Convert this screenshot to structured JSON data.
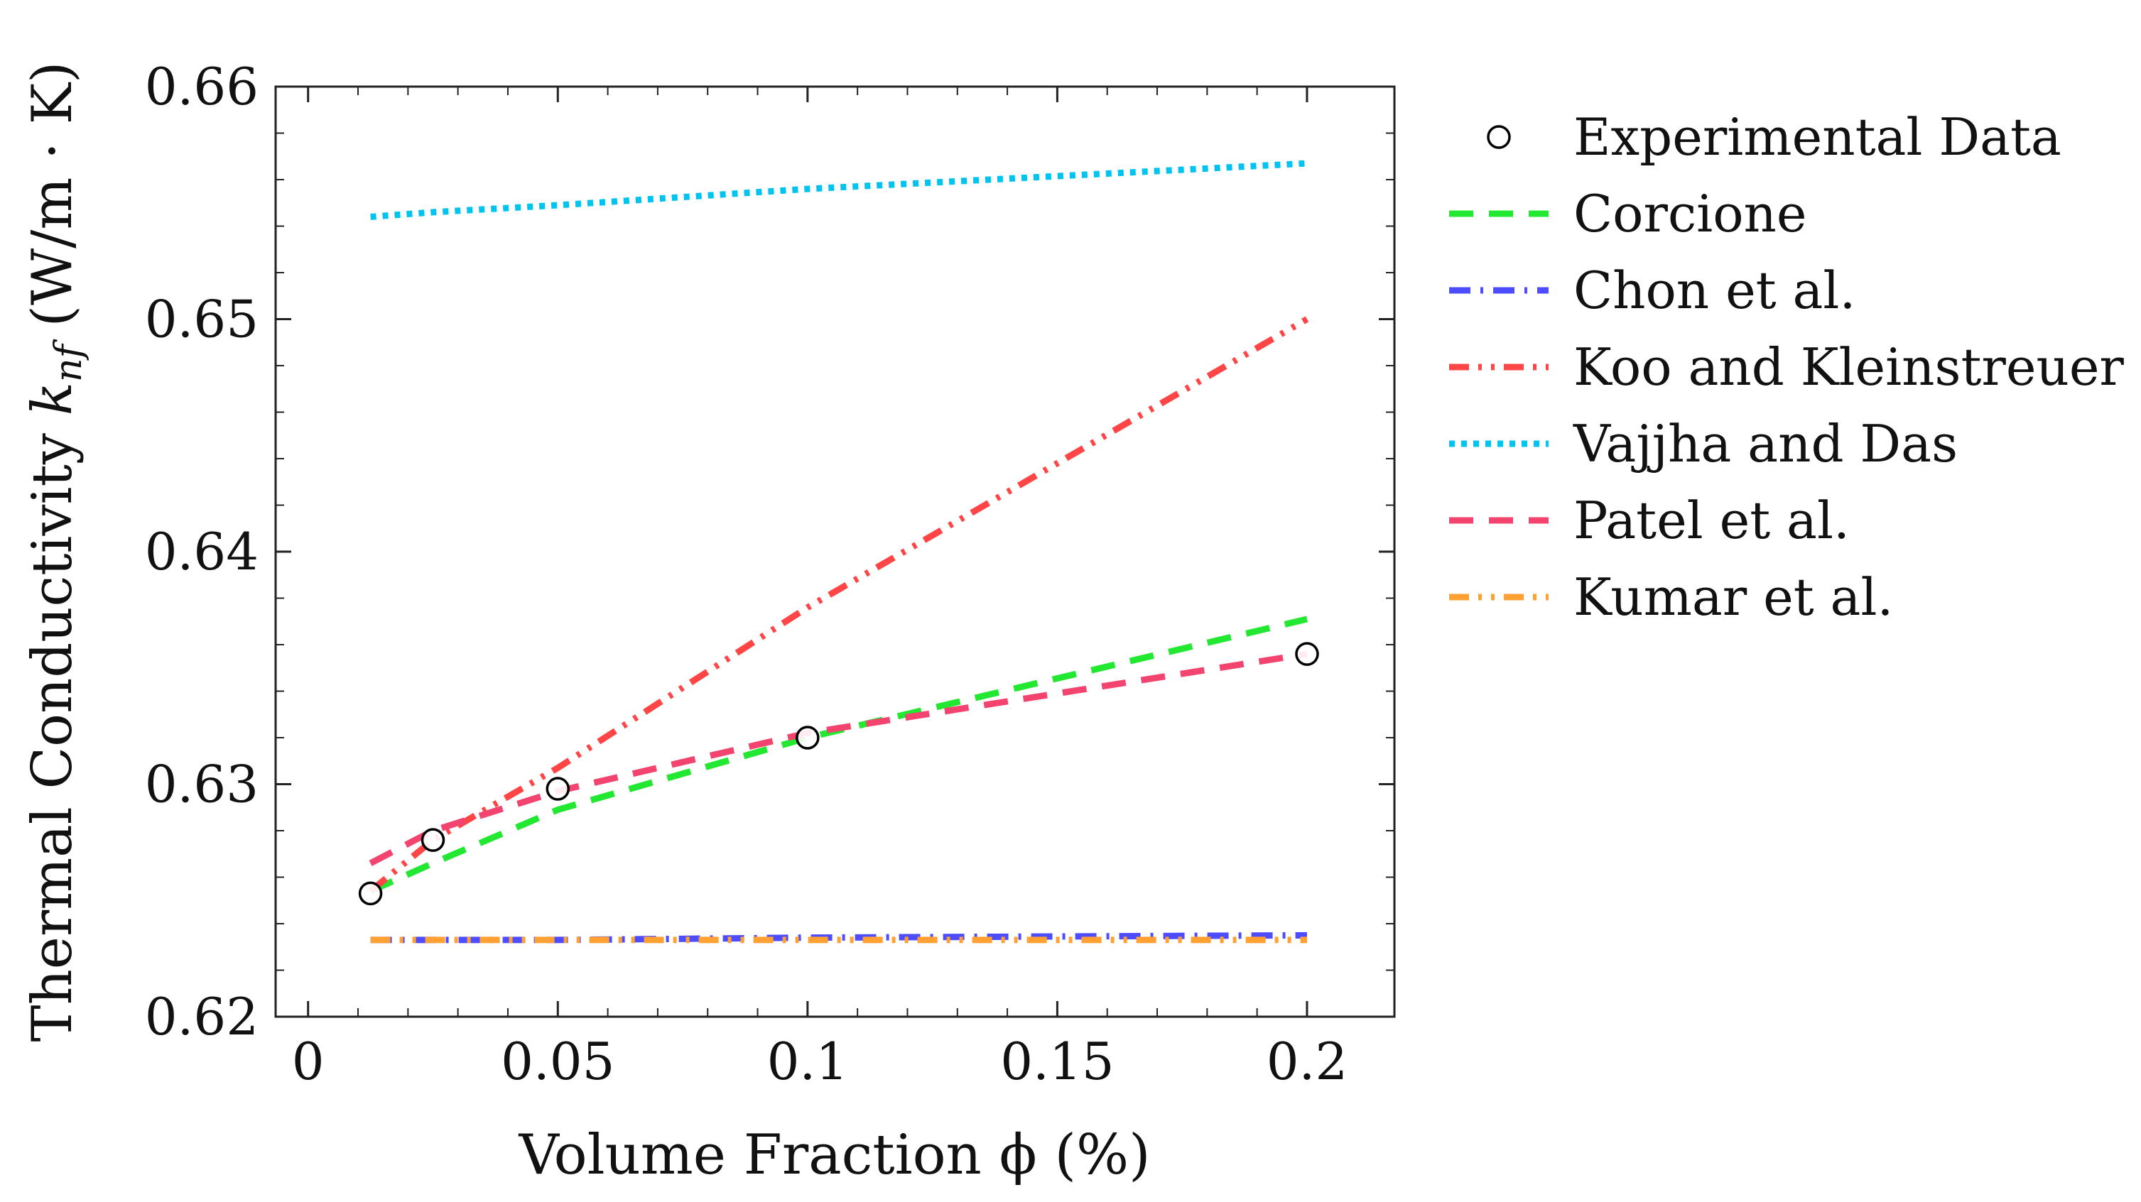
{
  "chart_data": {
    "type": "line",
    "title": "",
    "xlabel": "Volume Fraction ϕ (%)",
    "ylabel_main": "Thermal Conductivity ",
    "ylabel_symbol": "k",
    "ylabel_subscript": "nf",
    "ylabel_units": " (W/m · K)",
    "xlim": [
      -0.0065,
      0.2175
    ],
    "ylim": [
      0.62,
      0.66
    ],
    "xticks": [
      0,
      0.05,
      0.1,
      0.15,
      0.2
    ],
    "xtick_labels": [
      "0",
      "0.05",
      "0.1",
      "0.15",
      "0.2"
    ],
    "yticks": [
      0.62,
      0.63,
      0.64,
      0.65,
      0.66
    ],
    "ytick_labels": [
      "0.62",
      "0.63",
      "0.64",
      "0.65",
      "0.66"
    ],
    "legend_position": "right-outside",
    "series": [
      {
        "name": "Experimental Data",
        "style": "markers",
        "color": "#000000",
        "x": [
          0.0125,
          0.025,
          0.05,
          0.1,
          0.2
        ],
        "y": [
          0.6253,
          0.6276,
          0.6298,
          0.632,
          0.6356
        ]
      },
      {
        "name": "Corcione",
        "style": "dashed",
        "color": "#22e832",
        "x": [
          0.0125,
          0.025,
          0.05,
          0.1,
          0.2
        ],
        "y": [
          0.6254,
          0.6266,
          0.6289,
          0.632,
          0.6371
        ]
      },
      {
        "name": "Chon et al.",
        "style": "dashdot",
        "color": "#4d4dff",
        "x": [
          0.0125,
          0.025,
          0.05,
          0.1,
          0.2
        ],
        "y": [
          0.6233,
          0.6233,
          0.6233,
          0.6234,
          0.6235
        ]
      },
      {
        "name": "Koo and Kleinstreuer",
        "style": "dashdotdot",
        "color": "#ff4545",
        "x": [
          0.0125,
          0.025,
          0.05,
          0.1,
          0.2
        ],
        "y": [
          0.6254,
          0.6276,
          0.6307,
          0.6376,
          0.65
        ]
      },
      {
        "name": "Vajjha and Das",
        "style": "dotted",
        "color": "#00c4f0",
        "x": [
          0.0125,
          0.025,
          0.05,
          0.1,
          0.2
        ],
        "y": [
          0.6544,
          0.6546,
          0.6549,
          0.6556,
          0.6567
        ]
      },
      {
        "name": "Patel et al.",
        "style": "dashed",
        "color": "#f2446e",
        "x": [
          0.0125,
          0.025,
          0.05,
          0.1,
          0.2
        ],
        "y": [
          0.6266,
          0.628,
          0.6297,
          0.6322,
          0.6356
        ]
      },
      {
        "name": "Kumar et al.",
        "style": "dashdotdot",
        "color": "#ffa033",
        "x": [
          0.0125,
          0.025,
          0.05,
          0.1,
          0.2
        ],
        "y": [
          0.6233,
          0.6233,
          0.6233,
          0.6233,
          0.6233
        ]
      }
    ]
  }
}
